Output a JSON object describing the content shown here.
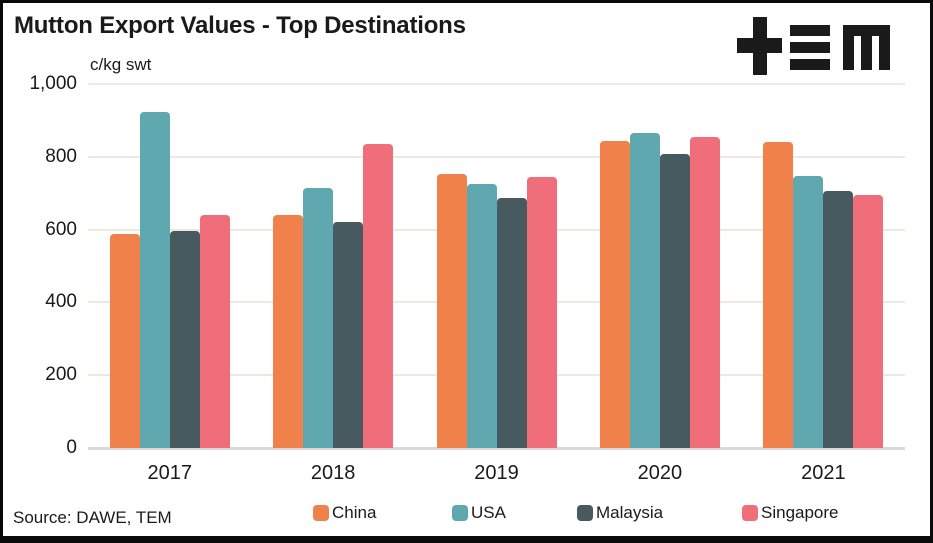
{
  "header": {
    "title": "Mutton Export Values - Top Destinations",
    "unit_label": "c/kg swt",
    "logo_name": "TEM"
  },
  "footer": {
    "source": "Source: DAWE, TEM"
  },
  "colors": {
    "china": "#F0814A",
    "usa": "#5FA8AF",
    "malaysia": "#465A60",
    "singapore": "#F06E7A",
    "gridline": "#EDE9DF",
    "axis_line": "#D9D9D9",
    "text": "#1A1A1A",
    "logo": "#1A1A1A"
  },
  "chart_data": {
    "type": "bar",
    "title": "Mutton Export Values - Top Destinations",
    "xlabel": "",
    "ylabel": "c/kg swt",
    "categories": [
      "2017",
      "2018",
      "2019",
      "2020",
      "2021"
    ],
    "series": [
      {
        "name": "China",
        "color": "#F0814A",
        "values": [
          588,
          640,
          753,
          843,
          840
        ]
      },
      {
        "name": "USA",
        "color": "#5FA8AF",
        "values": [
          922,
          714,
          726,
          865,
          748
        ]
      },
      {
        "name": "Malaysia",
        "color": "#465A60",
        "values": [
          596,
          620,
          688,
          807,
          706
        ]
      },
      {
        "name": "Singapore",
        "color": "#F06E7A",
        "values": [
          640,
          835,
          744,
          854,
          695
        ]
      }
    ],
    "ylim": [
      0,
      1000
    ],
    "yticks": [
      0,
      200,
      400,
      600,
      800,
      1000
    ],
    "ytick_labels": [
      "0",
      "200",
      "400",
      "600",
      "800",
      "1,000"
    ],
    "grid": true,
    "legend_position": "bottom"
  }
}
